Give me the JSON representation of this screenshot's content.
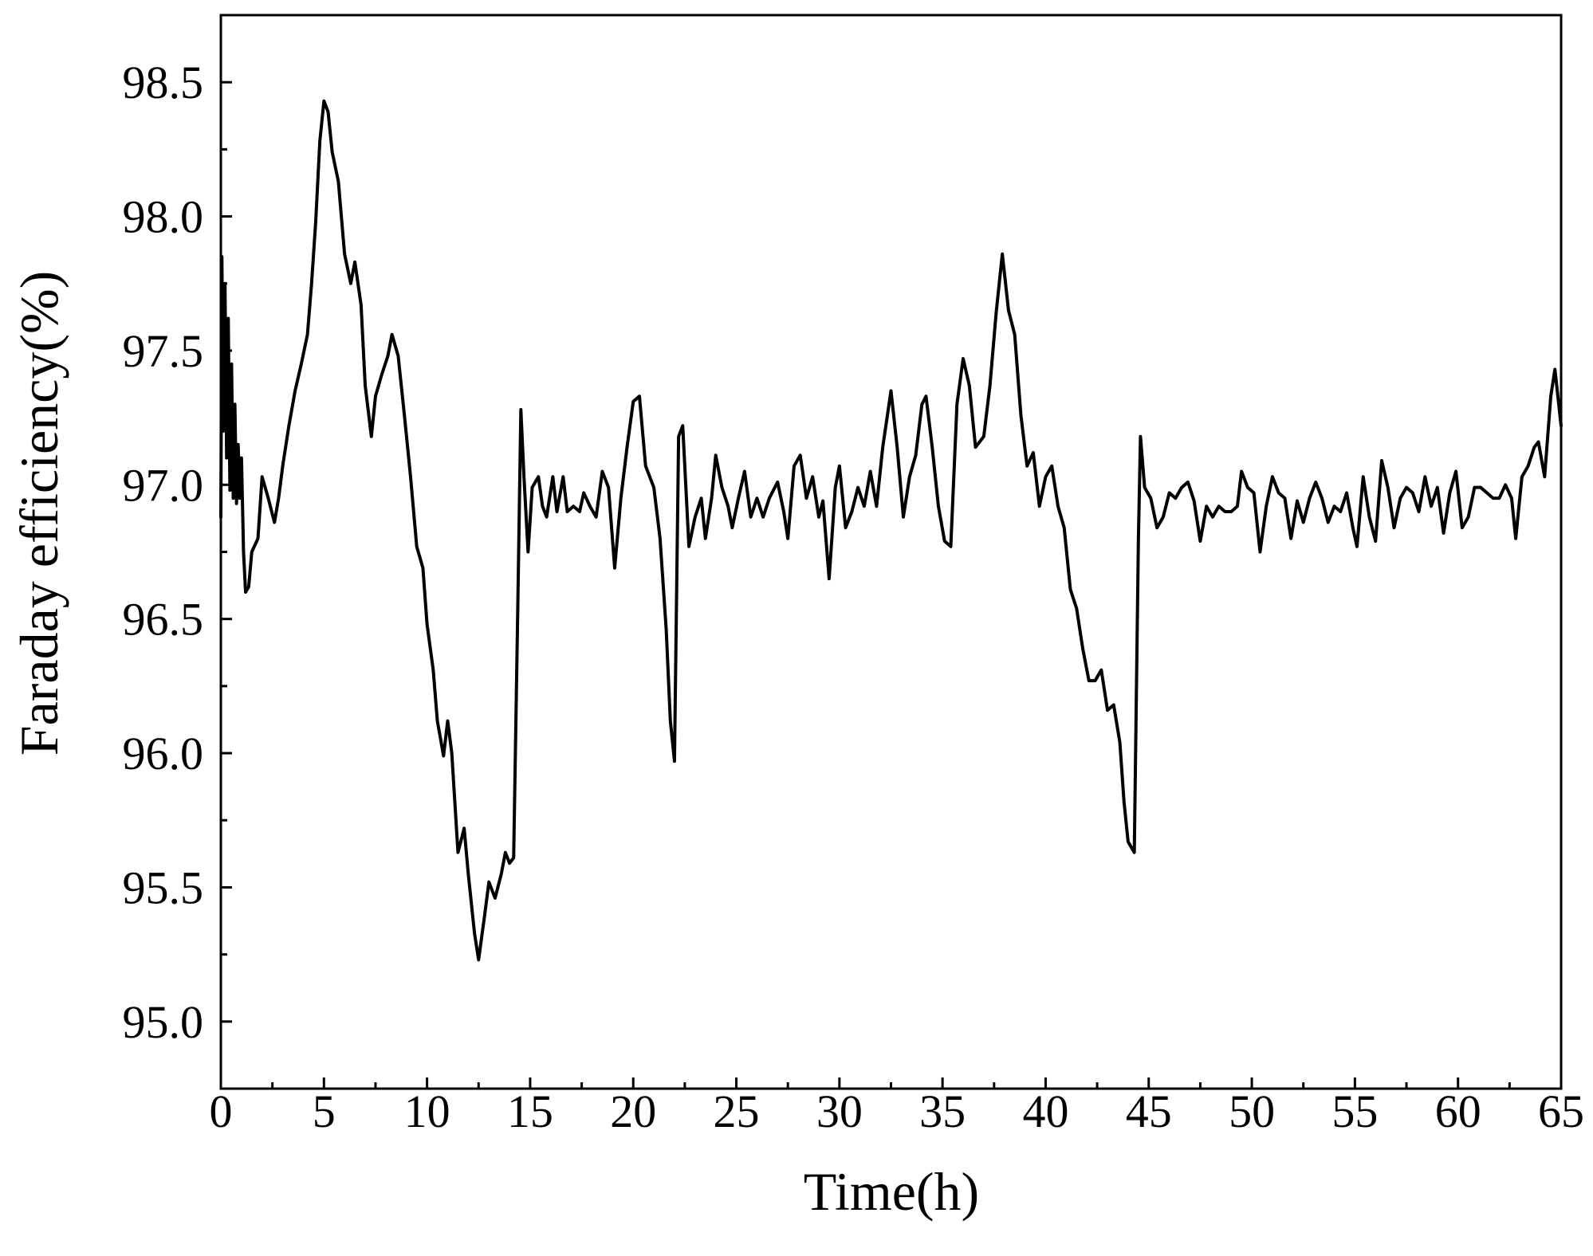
{
  "chart_data": {
    "type": "line",
    "xlabel": "Time(h)",
    "ylabel": "Faraday efficiency(%)",
    "xlim": [
      0,
      65
    ],
    "ylim": [
      94.75,
      98.75
    ],
    "xticks": [
      "0",
      "5",
      "10",
      "15",
      "20",
      "25",
      "30",
      "35",
      "40",
      "45",
      "50",
      "55",
      "60",
      "65"
    ],
    "yticks": [
      "95.0",
      "95.5",
      "96.0",
      "96.5",
      "97.0",
      "97.5",
      "98.0",
      "98.5"
    ],
    "x_minor_step": 2.5,
    "y_minor_step": 0.25,
    "grid": false,
    "legend": "none",
    "series": [
      {
        "color": "#000000",
        "points": [
          [
            0,
            96.88
          ],
          [
            0.05,
            97.85
          ],
          [
            0.12,
            97.2
          ],
          [
            0.2,
            97.75
          ],
          [
            0.28,
            97.1
          ],
          [
            0.36,
            97.62
          ],
          [
            0.44,
            96.98
          ],
          [
            0.52,
            97.45
          ],
          [
            0.6,
            96.95
          ],
          [
            0.68,
            97.3
          ],
          [
            0.76,
            96.93
          ],
          [
            0.84,
            97.15
          ],
          [
            0.92,
            96.95
          ],
          [
            1.0,
            97.1
          ],
          [
            1.1,
            96.75
          ],
          [
            1.2,
            96.6
          ],
          [
            1.35,
            96.62
          ],
          [
            1.5,
            96.75
          ],
          [
            1.8,
            96.8
          ],
          [
            2.0,
            97.03
          ],
          [
            2.3,
            96.95
          ],
          [
            2.6,
            96.86
          ],
          [
            2.8,
            96.95
          ],
          [
            3.0,
            97.07
          ],
          [
            3.3,
            97.22
          ],
          [
            3.6,
            97.35
          ],
          [
            3.9,
            97.45
          ],
          [
            4.2,
            97.56
          ],
          [
            4.4,
            97.75
          ],
          [
            4.6,
            97.98
          ],
          [
            4.8,
            98.28
          ],
          [
            5.0,
            98.43
          ],
          [
            5.2,
            98.39
          ],
          [
            5.4,
            98.24
          ],
          [
            5.7,
            98.13
          ],
          [
            6.0,
            97.86
          ],
          [
            6.3,
            97.75
          ],
          [
            6.5,
            97.83
          ],
          [
            6.8,
            97.67
          ],
          [
            7.0,
            97.37
          ],
          [
            7.3,
            97.18
          ],
          [
            7.5,
            97.33
          ],
          [
            7.8,
            97.41
          ],
          [
            8.1,
            97.48
          ],
          [
            8.3,
            97.56
          ],
          [
            8.6,
            97.48
          ],
          [
            8.9,
            97.26
          ],
          [
            9.2,
            97.03
          ],
          [
            9.5,
            96.77
          ],
          [
            9.8,
            96.69
          ],
          [
            10.0,
            96.48
          ],
          [
            10.3,
            96.31
          ],
          [
            10.5,
            96.12
          ],
          [
            10.8,
            95.99
          ],
          [
            11.0,
            96.12
          ],
          [
            11.2,
            96.0
          ],
          [
            11.5,
            95.63
          ],
          [
            11.8,
            95.72
          ],
          [
            12.0,
            95.55
          ],
          [
            12.3,
            95.33
          ],
          [
            12.5,
            95.23
          ],
          [
            12.8,
            95.4
          ],
          [
            13.0,
            95.52
          ],
          [
            13.3,
            95.46
          ],
          [
            13.6,
            95.55
          ],
          [
            13.8,
            95.63
          ],
          [
            14.0,
            95.59
          ],
          [
            14.2,
            95.61
          ],
          [
            14.4,
            96.54
          ],
          [
            14.55,
            97.28
          ],
          [
            14.7,
            97.03
          ],
          [
            14.9,
            96.75
          ],
          [
            15.1,
            96.99
          ],
          [
            15.4,
            97.03
          ],
          [
            15.6,
            96.92
          ],
          [
            15.8,
            96.88
          ],
          [
            16.1,
            97.03
          ],
          [
            16.3,
            96.9
          ],
          [
            16.6,
            97.03
          ],
          [
            16.8,
            96.9
          ],
          [
            17.1,
            96.92
          ],
          [
            17.4,
            96.9
          ],
          [
            17.6,
            96.97
          ],
          [
            17.9,
            96.92
          ],
          [
            18.2,
            96.88
          ],
          [
            18.5,
            97.05
          ],
          [
            18.8,
            96.99
          ],
          [
            19.1,
            96.69
          ],
          [
            19.4,
            96.95
          ],
          [
            19.7,
            97.14
          ],
          [
            20.0,
            97.31
          ],
          [
            20.3,
            97.33
          ],
          [
            20.6,
            97.07
          ],
          [
            21.0,
            96.99
          ],
          [
            21.3,
            96.8
          ],
          [
            21.6,
            96.46
          ],
          [
            21.8,
            96.12
          ],
          [
            22.0,
            95.97
          ],
          [
            22.2,
            97.18
          ],
          [
            22.4,
            97.22
          ],
          [
            22.7,
            96.77
          ],
          [
            23.0,
            96.88
          ],
          [
            23.3,
            96.95
          ],
          [
            23.5,
            96.8
          ],
          [
            23.8,
            96.95
          ],
          [
            24.0,
            97.11
          ],
          [
            24.3,
            96.99
          ],
          [
            24.6,
            96.92
          ],
          [
            24.8,
            96.84
          ],
          [
            25.1,
            96.95
          ],
          [
            25.4,
            97.05
          ],
          [
            25.7,
            96.88
          ],
          [
            26.0,
            96.95
          ],
          [
            26.3,
            96.88
          ],
          [
            26.6,
            96.95
          ],
          [
            27.0,
            97.01
          ],
          [
            27.3,
            96.9
          ],
          [
            27.5,
            96.8
          ],
          [
            27.8,
            97.07
          ],
          [
            28.1,
            97.11
          ],
          [
            28.4,
            96.95
          ],
          [
            28.7,
            97.03
          ],
          [
            29.0,
            96.88
          ],
          [
            29.2,
            96.94
          ],
          [
            29.5,
            96.65
          ],
          [
            29.8,
            96.99
          ],
          [
            30.0,
            97.07
          ],
          [
            30.3,
            96.84
          ],
          [
            30.6,
            96.9
          ],
          [
            30.9,
            96.99
          ],
          [
            31.2,
            96.92
          ],
          [
            31.5,
            97.05
          ],
          [
            31.8,
            96.92
          ],
          [
            32.1,
            97.14
          ],
          [
            32.5,
            97.35
          ],
          [
            32.8,
            97.14
          ],
          [
            33.1,
            96.88
          ],
          [
            33.4,
            97.03
          ],
          [
            33.7,
            97.11
          ],
          [
            34.0,
            97.3
          ],
          [
            34.2,
            97.33
          ],
          [
            34.5,
            97.14
          ],
          [
            34.8,
            96.92
          ],
          [
            35.1,
            96.79
          ],
          [
            35.4,
            96.77
          ],
          [
            35.7,
            97.3
          ],
          [
            36.0,
            97.47
          ],
          [
            36.3,
            97.37
          ],
          [
            36.6,
            97.14
          ],
          [
            37.0,
            97.18
          ],
          [
            37.3,
            97.37
          ],
          [
            37.6,
            97.64
          ],
          [
            37.9,
            97.86
          ],
          [
            38.2,
            97.65
          ],
          [
            38.5,
            97.56
          ],
          [
            38.8,
            97.26
          ],
          [
            39.1,
            97.07
          ],
          [
            39.4,
            97.12
          ],
          [
            39.7,
            96.92
          ],
          [
            40.0,
            97.03
          ],
          [
            40.3,
            97.07
          ],
          [
            40.6,
            96.92
          ],
          [
            40.9,
            96.84
          ],
          [
            41.2,
            96.61
          ],
          [
            41.5,
            96.54
          ],
          [
            41.8,
            96.39
          ],
          [
            42.1,
            96.27
          ],
          [
            42.4,
            96.27
          ],
          [
            42.7,
            96.31
          ],
          [
            43.0,
            96.16
          ],
          [
            43.3,
            96.18
          ],
          [
            43.6,
            96.04
          ],
          [
            43.8,
            95.82
          ],
          [
            44.0,
            95.67
          ],
          [
            44.3,
            95.63
          ],
          [
            44.5,
            96.8
          ],
          [
            44.6,
            97.18
          ],
          [
            44.8,
            96.99
          ],
          [
            45.1,
            96.95
          ],
          [
            45.4,
            96.84
          ],
          [
            45.7,
            96.88
          ],
          [
            46.0,
            96.97
          ],
          [
            46.3,
            96.95
          ],
          [
            46.6,
            96.99
          ],
          [
            46.9,
            97.01
          ],
          [
            47.2,
            96.94
          ],
          [
            47.5,
            96.79
          ],
          [
            47.8,
            96.92
          ],
          [
            48.1,
            96.88
          ],
          [
            48.4,
            96.92
          ],
          [
            48.7,
            96.9
          ],
          [
            49.0,
            96.9
          ],
          [
            49.3,
            96.92
          ],
          [
            49.5,
            97.05
          ],
          [
            49.8,
            96.99
          ],
          [
            50.1,
            96.97
          ],
          [
            50.4,
            96.75
          ],
          [
            50.7,
            96.92
          ],
          [
            51.0,
            97.03
          ],
          [
            51.3,
            96.97
          ],
          [
            51.6,
            96.95
          ],
          [
            51.9,
            96.8
          ],
          [
            52.2,
            96.94
          ],
          [
            52.5,
            96.86
          ],
          [
            52.8,
            96.95
          ],
          [
            53.1,
            97.01
          ],
          [
            53.4,
            96.95
          ],
          [
            53.7,
            96.86
          ],
          [
            54.0,
            96.92
          ],
          [
            54.3,
            96.9
          ],
          [
            54.6,
            96.97
          ],
          [
            54.9,
            96.84
          ],
          [
            55.1,
            96.77
          ],
          [
            55.4,
            97.03
          ],
          [
            55.7,
            96.88
          ],
          [
            56.0,
            96.79
          ],
          [
            56.3,
            97.09
          ],
          [
            56.6,
            96.99
          ],
          [
            56.9,
            96.84
          ],
          [
            57.2,
            96.95
          ],
          [
            57.5,
            96.99
          ],
          [
            57.8,
            96.97
          ],
          [
            58.1,
            96.9
          ],
          [
            58.4,
            97.03
          ],
          [
            58.7,
            96.92
          ],
          [
            59.0,
            96.99
          ],
          [
            59.3,
            96.82
          ],
          [
            59.6,
            96.97
          ],
          [
            59.9,
            97.05
          ],
          [
            60.2,
            96.84
          ],
          [
            60.5,
            96.88
          ],
          [
            60.8,
            96.99
          ],
          [
            61.1,
            96.99
          ],
          [
            61.4,
            96.97
          ],
          [
            61.7,
            96.95
          ],
          [
            62.0,
            96.95
          ],
          [
            62.3,
            97.0
          ],
          [
            62.6,
            96.95
          ],
          [
            62.8,
            96.8
          ],
          [
            63.1,
            97.03
          ],
          [
            63.4,
            97.07
          ],
          [
            63.7,
            97.14
          ],
          [
            63.9,
            97.16
          ],
          [
            64.2,
            97.03
          ],
          [
            64.5,
            97.33
          ],
          [
            64.7,
            97.43
          ],
          [
            65.0,
            97.22
          ]
        ]
      }
    ]
  }
}
